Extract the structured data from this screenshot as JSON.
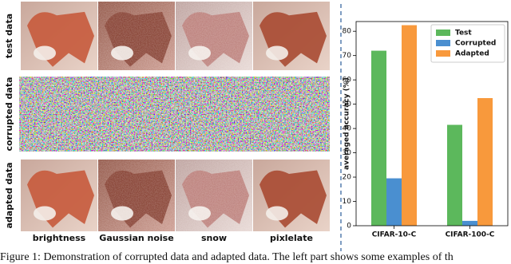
{
  "figure": {
    "row_labels": [
      "test data",
      "corrupted data",
      "adapted data"
    ],
    "column_labels": [
      "brightness",
      "Gaussian noise",
      "snow",
      "pixlelate"
    ],
    "caption": "Figure 1: Demonstration of corrupted data and adapted data. The left part shows some examples of th"
  },
  "chart_data": {
    "type": "bar",
    "ylabel": "averaged accuracy (%)",
    "categories": [
      "CIFAR-10-C",
      "CIFAR-100-C"
    ],
    "series": [
      {
        "name": "Test",
        "color": "#5cb85c",
        "values": [
          72,
          41.5
        ]
      },
      {
        "name": "Corrupted",
        "color": "#4a8fd0",
        "values": [
          19.5,
          2
        ]
      },
      {
        "name": "Adapted",
        "color": "#f8993c",
        "values": [
          82.5,
          52.5
        ]
      }
    ],
    "ylim": [
      0,
      84
    ],
    "yticks": [
      0,
      10,
      20,
      30,
      40,
      50,
      60,
      70,
      80
    ],
    "legend": "upper right",
    "grid": false
  }
}
